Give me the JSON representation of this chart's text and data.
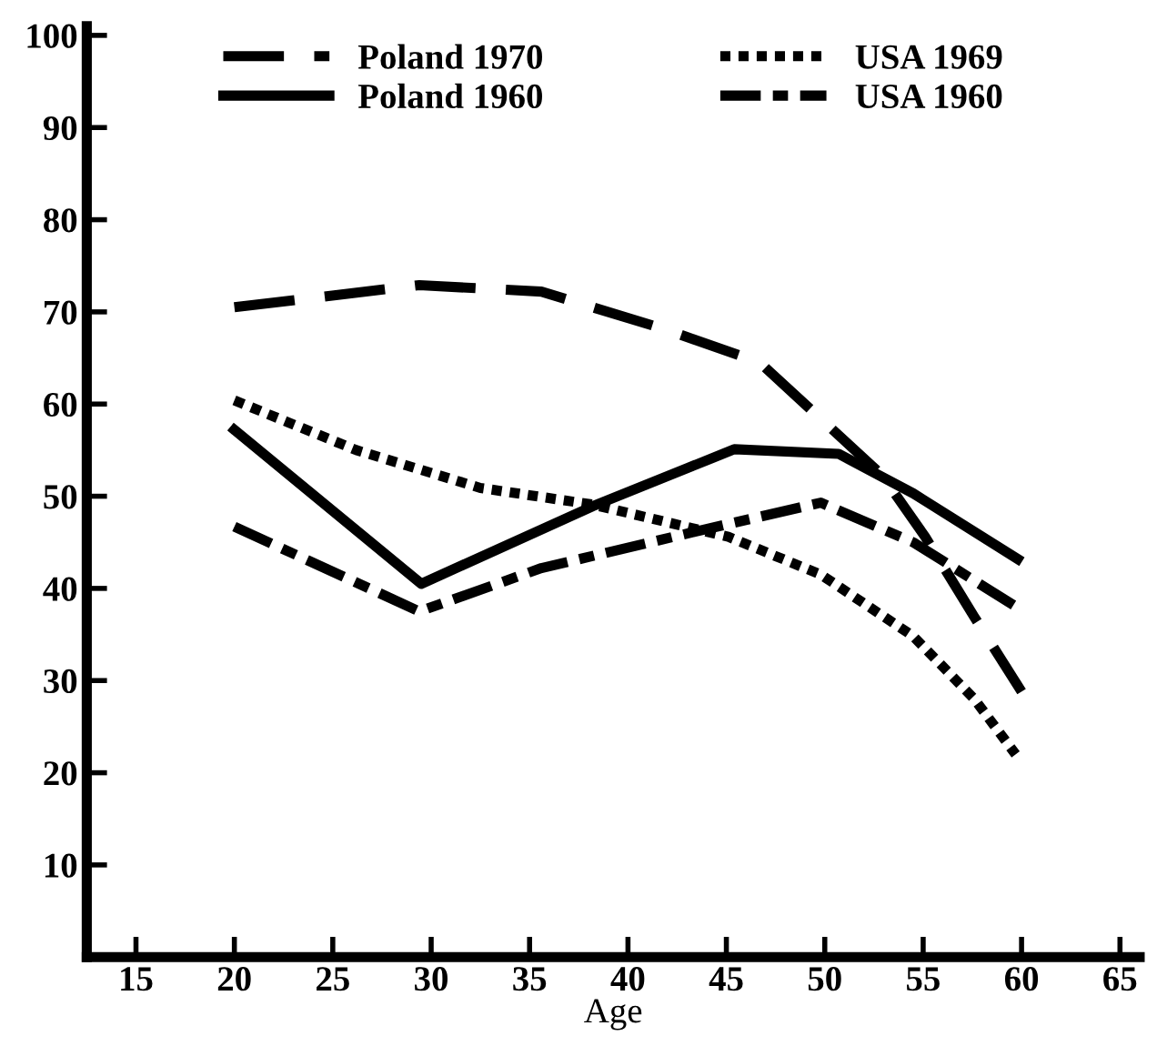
{
  "chart_data": {
    "type": "line",
    "xlabel": "Age",
    "series": [
      {
        "name": "Poland 1970",
        "color": "#000000",
        "line_style": "dashed",
        "x": [
          20,
          29.4,
          35.6,
          41.9,
          46.7,
          49.8,
          52.9,
          55.1,
          57.6,
          60
        ],
        "values": [
          70.5,
          72.9,
          72.2,
          68.1,
          64.5,
          58.4,
          52.3,
          45.6,
          36.9,
          28.8
        ]
      },
      {
        "name": "Poland 1960",
        "color": "#000000",
        "line_style": "solid",
        "x": [
          20,
          29.5,
          38.2,
          45.4,
          50.7,
          54.5,
          59.8
        ],
        "values": [
          57.2,
          40.5,
          48.9,
          55.1,
          54.6,
          50.3,
          43.2
        ]
      },
      {
        "name": "USA 1969",
        "color": "#000000",
        "line_style": "dotted",
        "x": [
          20,
          26.2,
          32.5,
          38.2,
          45.1,
          49.8,
          54.5,
          57.6,
          59.7
        ],
        "values": [
          60.4,
          55.0,
          50.9,
          49.1,
          45.6,
          41.5,
          34.8,
          28.0,
          22.0
        ]
      },
      {
        "name": "USA 1960",
        "color": "#000000",
        "line_style": "dashdot",
        "x": [
          20,
          29.4,
          35.6,
          43.5,
          49.8,
          54.5,
          59.8
        ],
        "values": [
          46.7,
          37.5,
          42.2,
          46.2,
          49.3,
          45.0,
          37.9
        ]
      }
    ],
    "xlim": [
      12.5,
      66
    ],
    "xticks": [
      15,
      20,
      25,
      30,
      35,
      40,
      45,
      50,
      55,
      60,
      65
    ],
    "ylim": [
      0,
      101
    ],
    "yticks": [
      10,
      20,
      30,
      40,
      50,
      60,
      70,
      80,
      90,
      100
    ],
    "legend": "top",
    "grid": false,
    "marker": "none"
  }
}
